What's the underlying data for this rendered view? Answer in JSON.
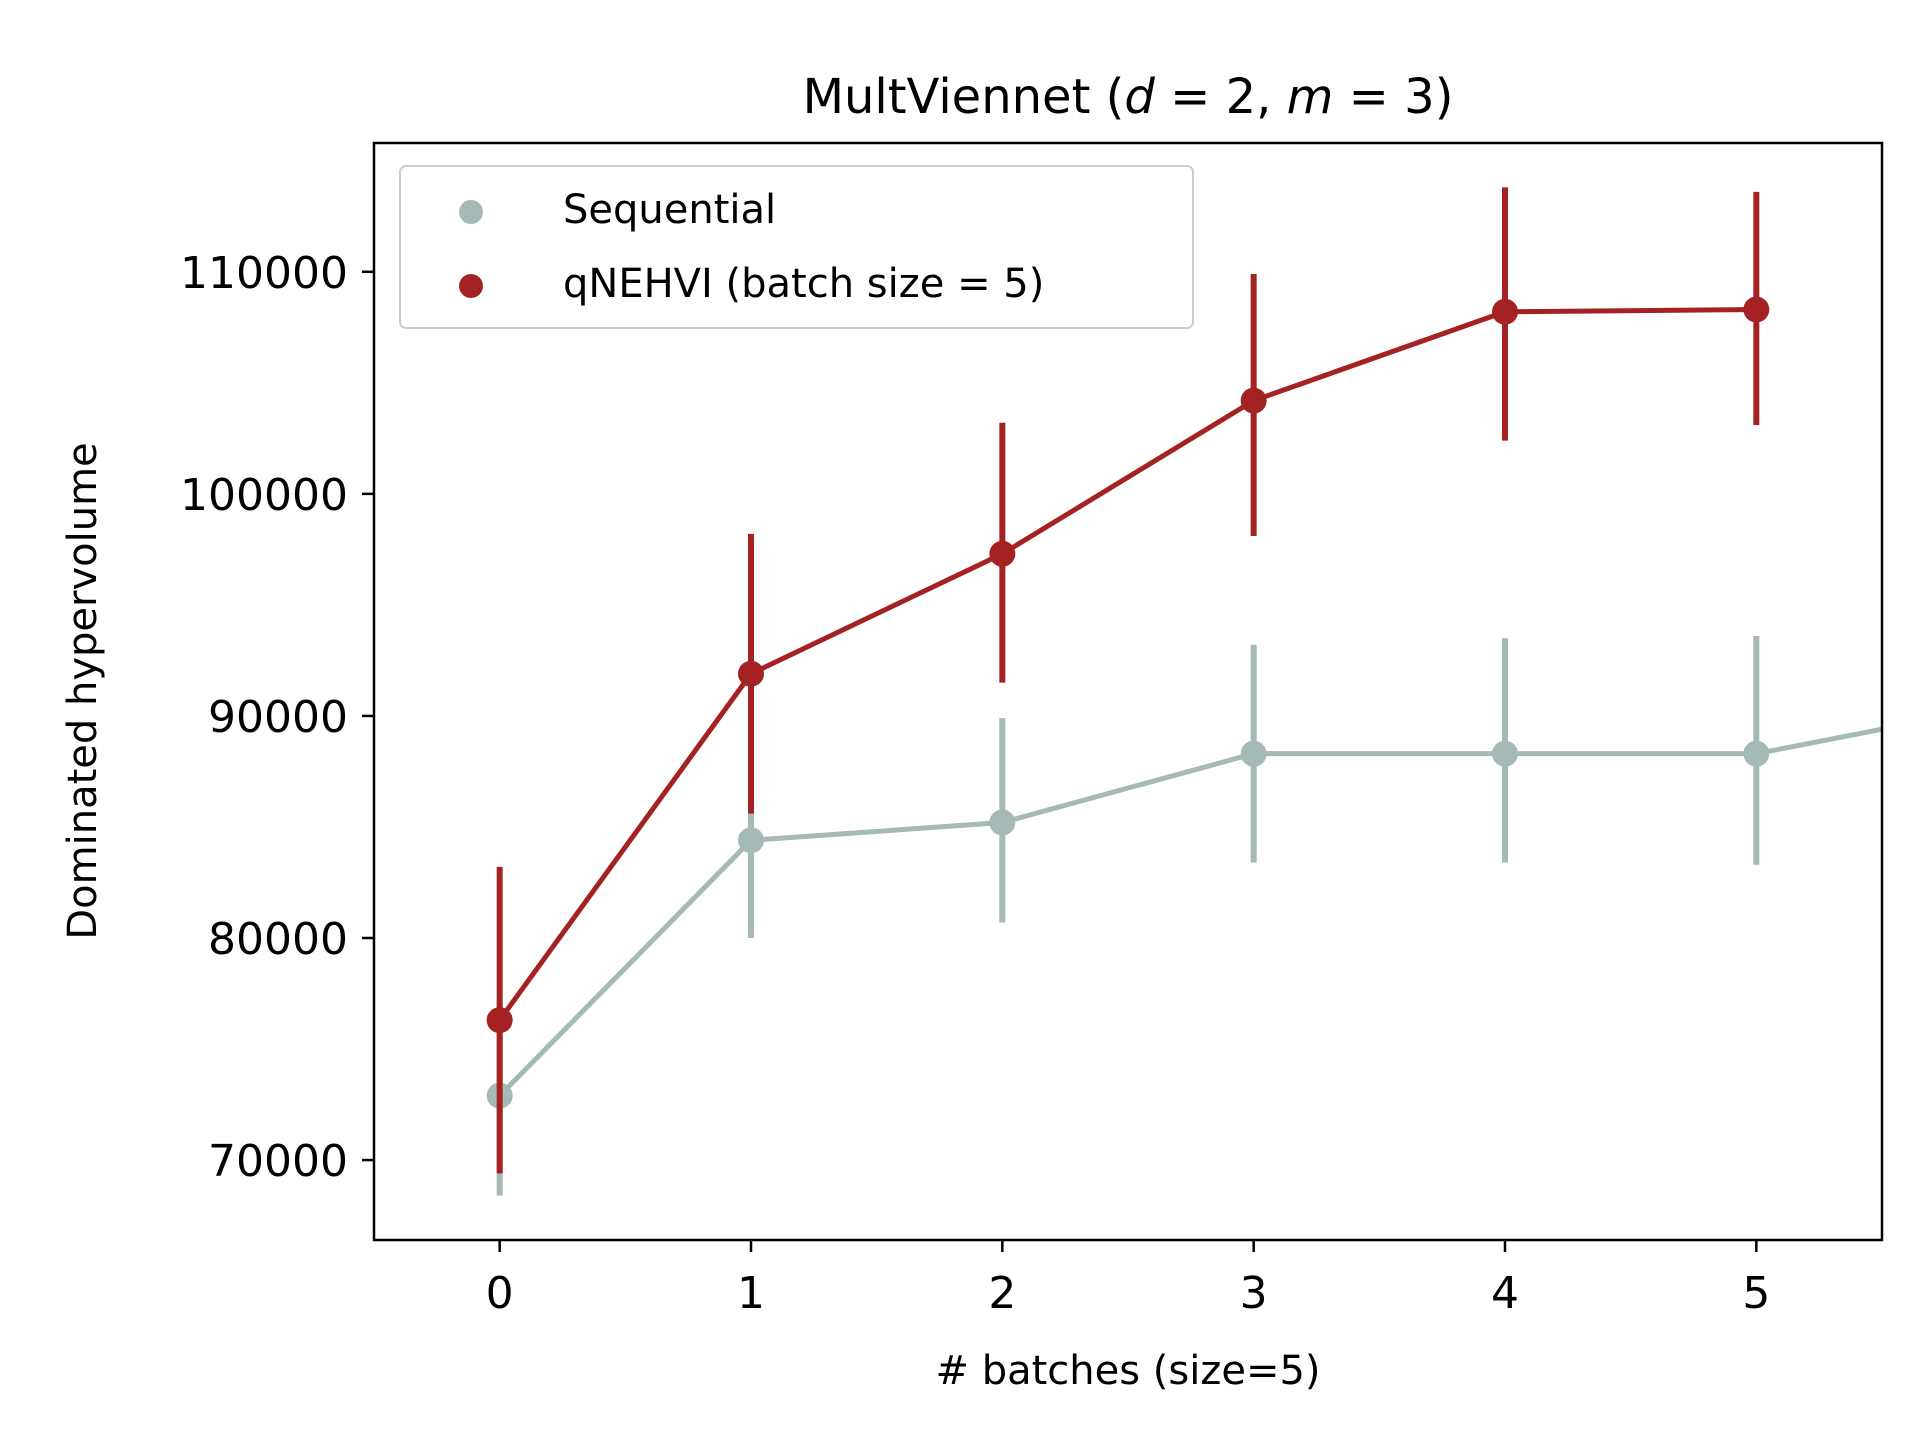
{
  "chart_data": {
    "type": "line",
    "title": {
      "prefix": "MultViennet (",
      "var1": "d",
      "eq1": " = 2, ",
      "var2": "m",
      "eq2": " = 3)"
    },
    "xlabel": "# batches (size=5)",
    "ylabel": "Dominated hypervolume",
    "x": [
      0,
      1,
      2,
      3,
      4,
      5
    ],
    "xlim": [
      -0.5,
      5.5
    ],
    "ylim": [
      66400,
      115800
    ],
    "xticks": [
      "0",
      "1",
      "2",
      "3",
      "4",
      "5"
    ],
    "yticks": [
      {
        "value": 70000,
        "label": "70000"
      },
      {
        "value": 80000,
        "label": "80000"
      },
      {
        "value": 90000,
        "label": "90000"
      },
      {
        "value": 100000,
        "label": "100000"
      },
      {
        "value": 110000,
        "label": "110000"
      }
    ],
    "grid": false,
    "legend_position": "upper-left",
    "series": [
      {
        "name": "Sequential",
        "color": "#a5b9b6",
        "values": [
          72900,
          84400,
          85200,
          88300,
          88300,
          88300
        ],
        "err_low": [
          68400,
          80000,
          80700,
          83400,
          83400,
          83300
        ],
        "err_high": [
          77200,
          88700,
          89900,
          93200,
          93500,
          93600
        ],
        "line_extends_to": {
          "x": 5.5,
          "y": 89400
        }
      },
      {
        "name": "qNEHVI (batch size = 5)",
        "color": "#a52222",
        "values": [
          76300,
          91900,
          97300,
          104200,
          108200,
          108300
        ],
        "err_low": [
          69400,
          85600,
          91500,
          98100,
          102400,
          103100
        ],
        "err_high": [
          83200,
          98200,
          103200,
          109900,
          113800,
          113600
        ]
      }
    ]
  }
}
